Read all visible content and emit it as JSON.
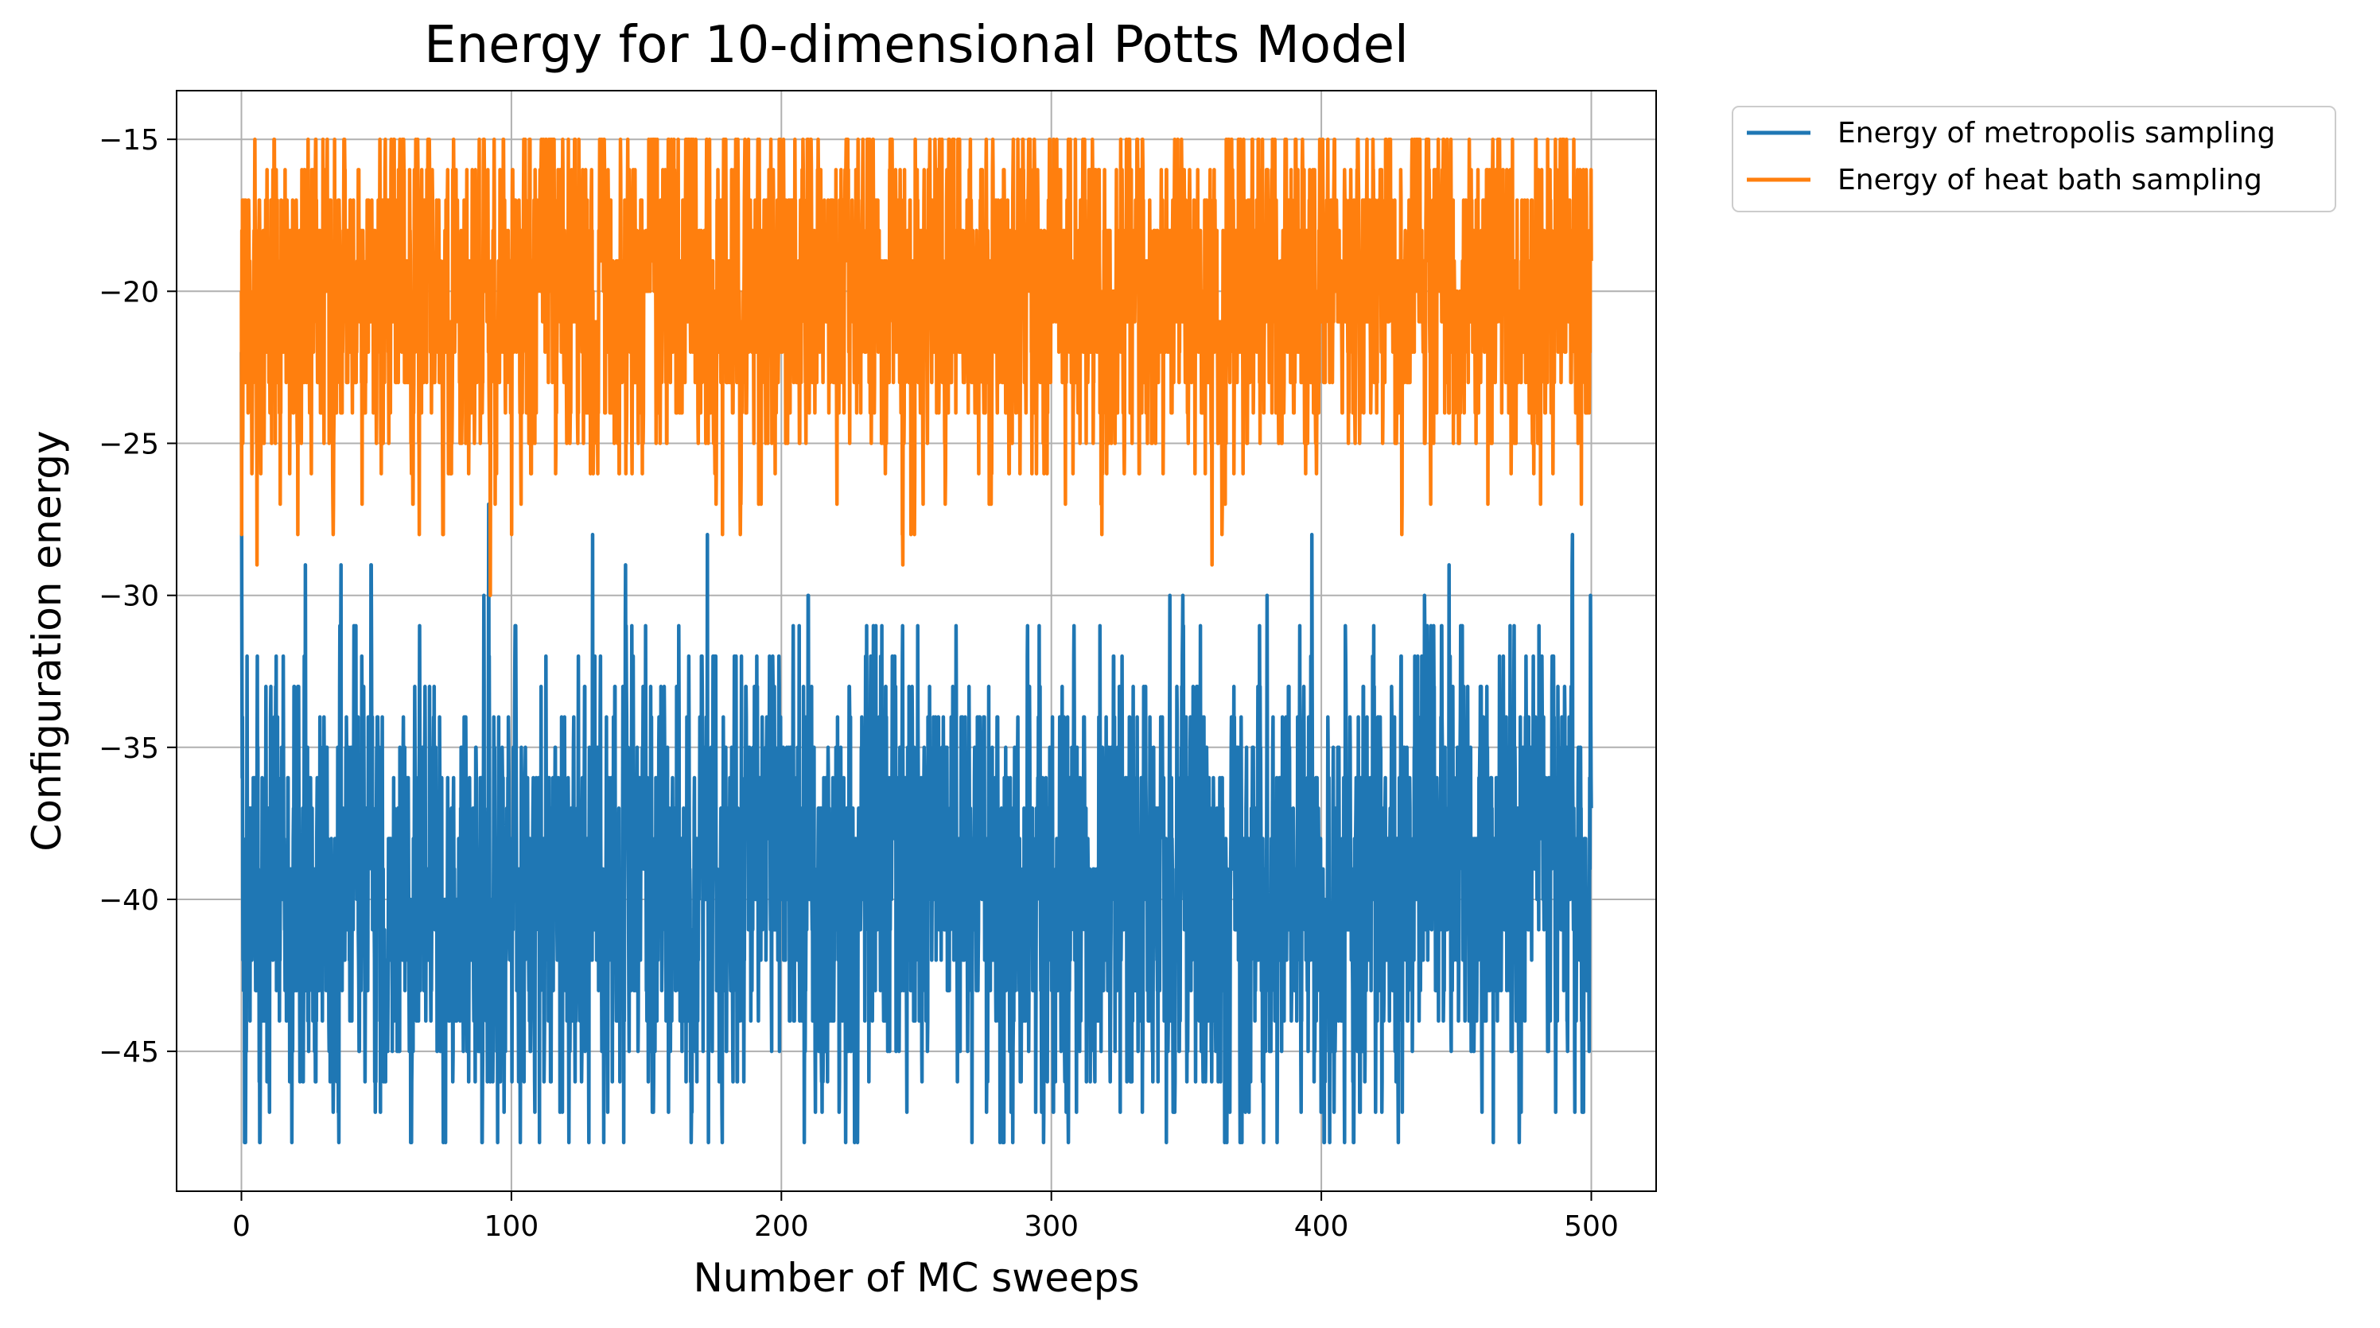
{
  "chart_data": {
    "type": "line",
    "title": "Energy for 10-dimensional Potts Model",
    "xlabel": "Number of MC sweeps",
    "ylabel": "Configuration energy",
    "xlim": [
      -24,
      524
    ],
    "ylim": [
      -49.6,
      -13.4
    ],
    "xticks": [
      0,
      100,
      200,
      300,
      400,
      500
    ],
    "xtick_labels": [
      "0",
      "100",
      "200",
      "300",
      "400",
      "500"
    ],
    "yticks": [
      -15,
      -20,
      -25,
      -30,
      -35,
      -40,
      -45
    ],
    "ytick_labels": [
      "−15",
      "−20",
      "−25",
      "−30",
      "−35",
      "−40",
      "−45"
    ],
    "grid": true,
    "legend_position": "outside upper-right",
    "series": [
      {
        "name": "Energy of metropolis sampling",
        "color": "#1f77b4",
        "initial_values": [
          -22,
          -28,
          -32,
          -36,
          -34,
          -40,
          -42,
          -38
        ],
        "mean": -39.5,
        "std": 3.3,
        "min": -48,
        "max": -27
      },
      {
        "name": "Energy of heat bath sampling",
        "color": "#ff7f0e",
        "initial_values": [
          -20,
          -28,
          -18,
          -22,
          -17,
          -25
        ],
        "mean": -20,
        "std": 2.6,
        "min": -30,
        "max": -15
      }
    ],
    "x_range": [
      0,
      500
    ],
    "samples_per_sweep": 10
  }
}
